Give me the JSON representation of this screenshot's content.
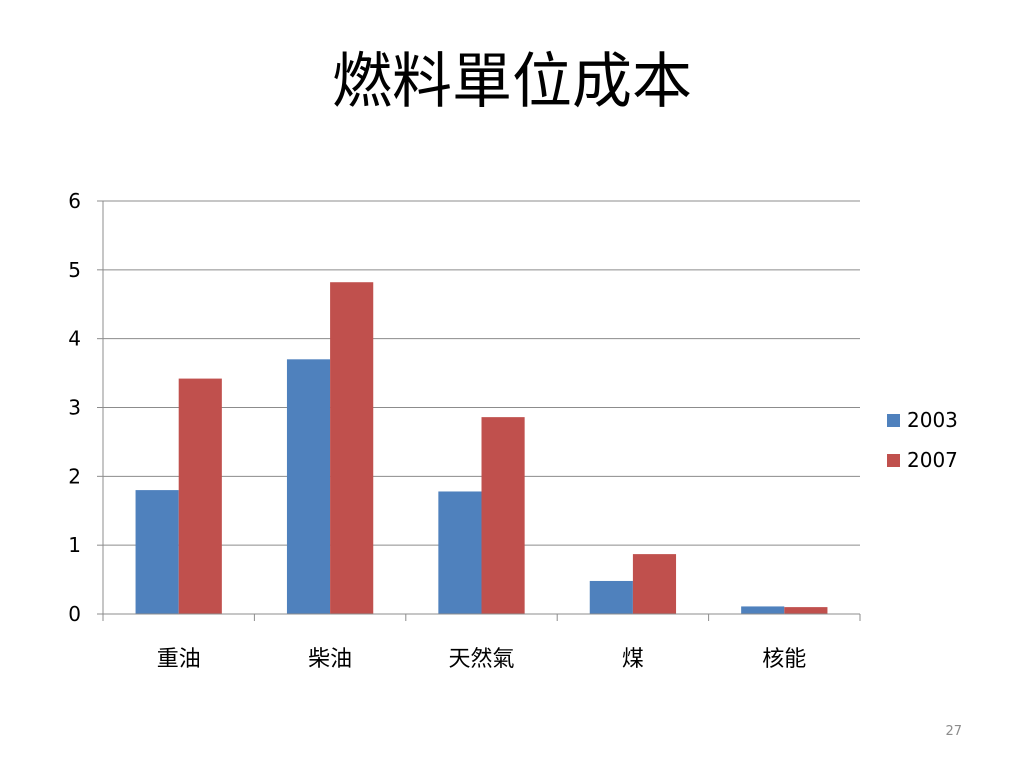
{
  "slide": {
    "title": "燃料單位成本",
    "page_number": "27"
  },
  "colors": {
    "series_2003": "#4f81bd",
    "series_2007": "#c0504d",
    "gridline": "#8c8c8c",
    "axis": "#8c8c8c",
    "text": "#000000"
  },
  "chart_data": {
    "type": "bar",
    "title": "",
    "xlabel": "",
    "ylabel": "",
    "categories": [
      "重油",
      "柴油",
      "天然氣",
      "煤",
      "核能"
    ],
    "series": [
      {
        "name": "2003",
        "values": [
          1.8,
          3.7,
          1.78,
          0.48,
          0.11
        ]
      },
      {
        "name": "2007",
        "values": [
          3.42,
          4.82,
          2.86,
          0.87,
          0.1
        ]
      }
    ],
    "ylim": [
      0,
      6
    ],
    "yticks": [
      0,
      1,
      2,
      3,
      4,
      5,
      6
    ],
    "grid": true,
    "legend_position": "right"
  }
}
